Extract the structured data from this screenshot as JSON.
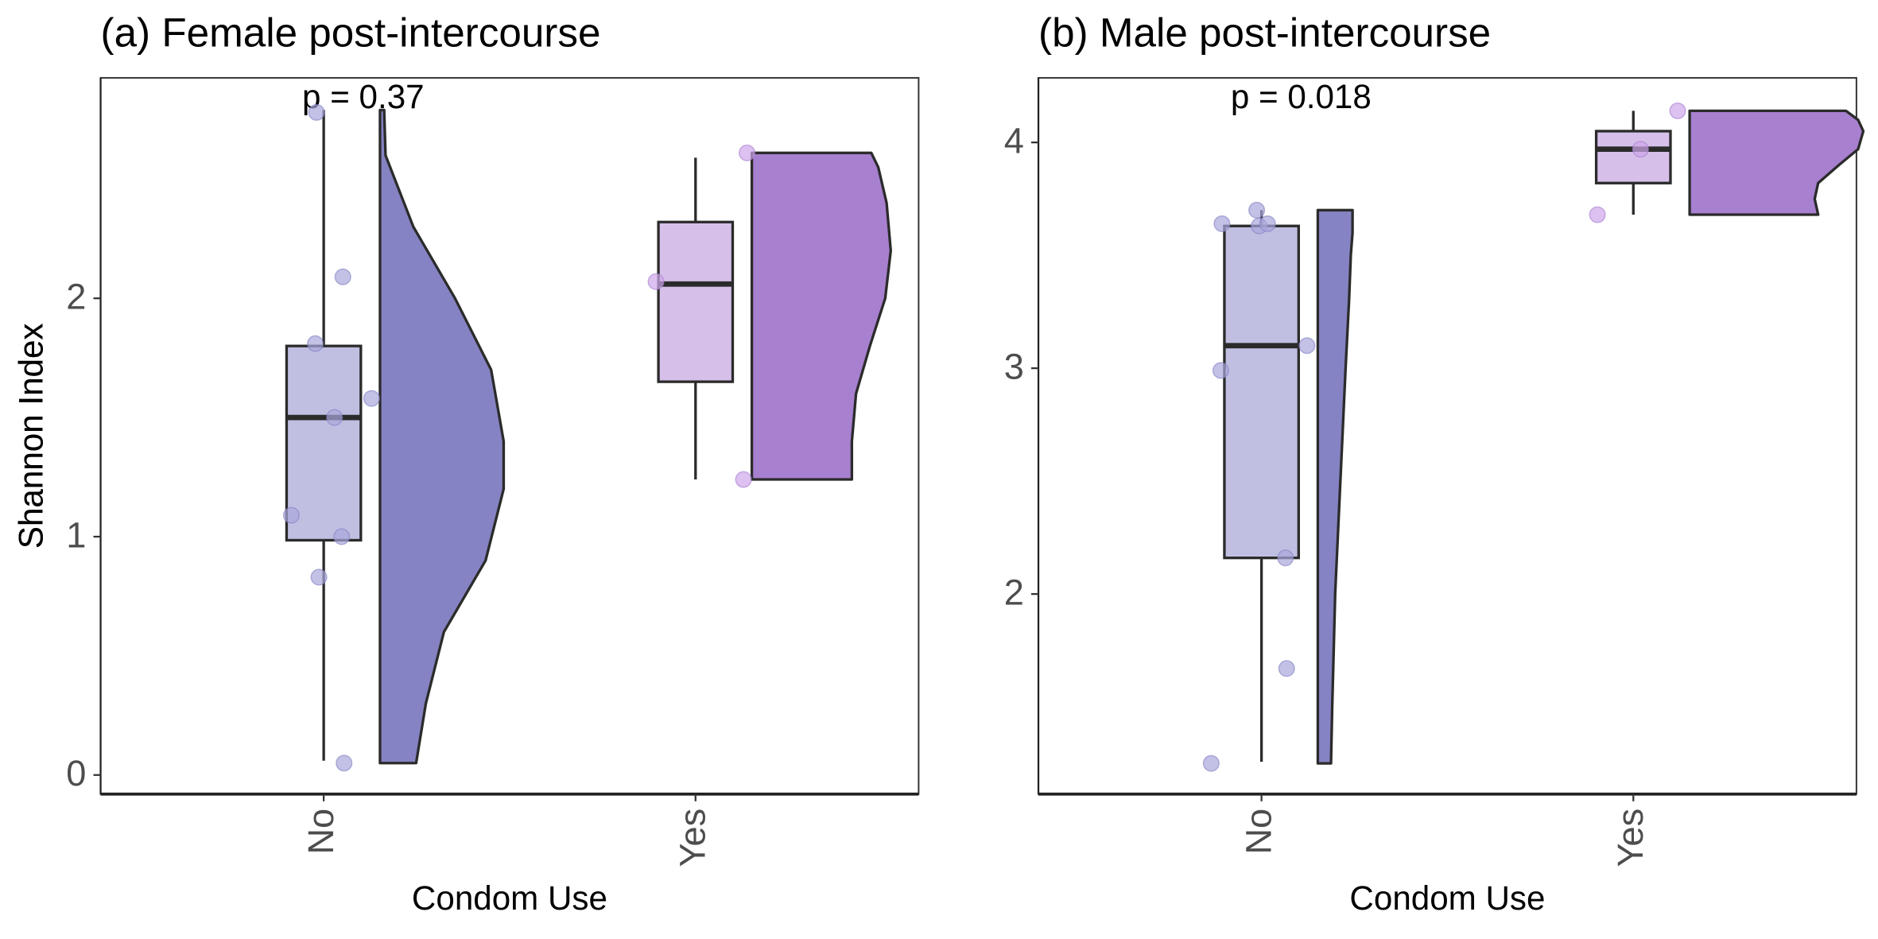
{
  "chart_data": [
    {
      "type": "raincloud",
      "title": "(a) Female post-intercourse",
      "xlabel": "Condom Use",
      "ylabel": "Shannon Index",
      "annotation": "p = 0.37",
      "categories": [
        "No",
        "Yes"
      ],
      "ylim": [
        -0.08,
        2.925
      ],
      "yticks": [
        0,
        1,
        2
      ],
      "groups": [
        {
          "box_color": "#c0bfe2",
          "violin_color": "#8583c3",
          "point_color": "#a9a6dc",
          "box": {
            "min": 0.06,
            "q1": 0.985,
            "median": 1.5,
            "q3": 1.8,
            "max": 2.79
          },
          "points": [
            2.78,
            2.09,
            1.81,
            1.58,
            1.5,
            1.09,
            1.0,
            0.83,
            0.05
          ],
          "density": {
            "y": [
              0.05,
              0.3,
              0.6,
              0.9,
              1.2,
              1.4,
              1.7,
              2.0,
              2.3,
              2.6,
              2.79
            ],
            "width": [
              0.26,
              0.33,
              0.46,
              0.76,
              0.89,
              0.89,
              0.8,
              0.54,
              0.24,
              0.04,
              0.03
            ]
          }
        },
        {
          "box_color": "#d6c0e9",
          "violin_color": "#a880d0",
          "point_color": "#cfa7ea",
          "box": {
            "min": 1.24,
            "q1": 1.65,
            "median": 2.06,
            "q3": 2.32,
            "max": 2.59
          },
          "points": [
            2.61,
            2.07,
            1.24
          ],
          "density": {
            "y": [
              1.24,
              1.4,
              1.6,
              1.8,
              2.0,
              2.2,
              2.4,
              2.55,
              2.61
            ],
            "width": [
              0.72,
              0.72,
              0.75,
              0.85,
              0.96,
              1.0,
              0.97,
              0.91,
              0.86
            ]
          }
        }
      ]
    },
    {
      "type": "raincloud",
      "title": "(b) Male post-intercourse",
      "xlabel": "Condom Use",
      "ylabel": "Shannon Index",
      "annotation": "p = 0.018",
      "categories": [
        "No",
        "Yes"
      ],
      "ylim": [
        1.114,
        4.286
      ],
      "yticks": [
        2,
        3,
        4
      ],
      "groups": [
        {
          "box_color": "#c0bfe2",
          "violin_color": "#8583c3",
          "point_color": "#a9a6dc",
          "box": {
            "min": 1.257,
            "q1": 2.16,
            "median": 3.1,
            "q3": 3.63,
            "max": 3.7
          },
          "points": [
            1.25,
            1.67,
            2.16,
            2.99,
            3.1,
            3.64,
            3.7,
            3.63,
            3.64
          ],
          "density": {
            "y": [
              1.25,
              1.5,
              2.0,
              2.5,
              3.0,
              3.3,
              3.5,
              3.6,
              3.7
            ],
            "width": [
              0.076,
              0.083,
              0.1,
              0.13,
              0.16,
              0.18,
              0.19,
              0.2,
              0.2
            ]
          }
        },
        {
          "box_color": "#d6c0e9",
          "violin_color": "#a880d0",
          "point_color": "#cfa7ea",
          "box": {
            "min": 3.68,
            "q1": 3.82,
            "median": 3.97,
            "q3": 4.05,
            "max": 4.14
          },
          "points": [
            3.68,
            3.97,
            4.14
          ],
          "density": {
            "y": [
              3.68,
              3.75,
              3.82,
              3.9,
              3.97,
              4.05,
              4.1,
              4.14
            ],
            "width": [
              0.74,
              0.72,
              0.74,
              0.86,
              0.97,
              1.0,
              0.97,
              0.9
            ]
          }
        }
      ]
    }
  ]
}
